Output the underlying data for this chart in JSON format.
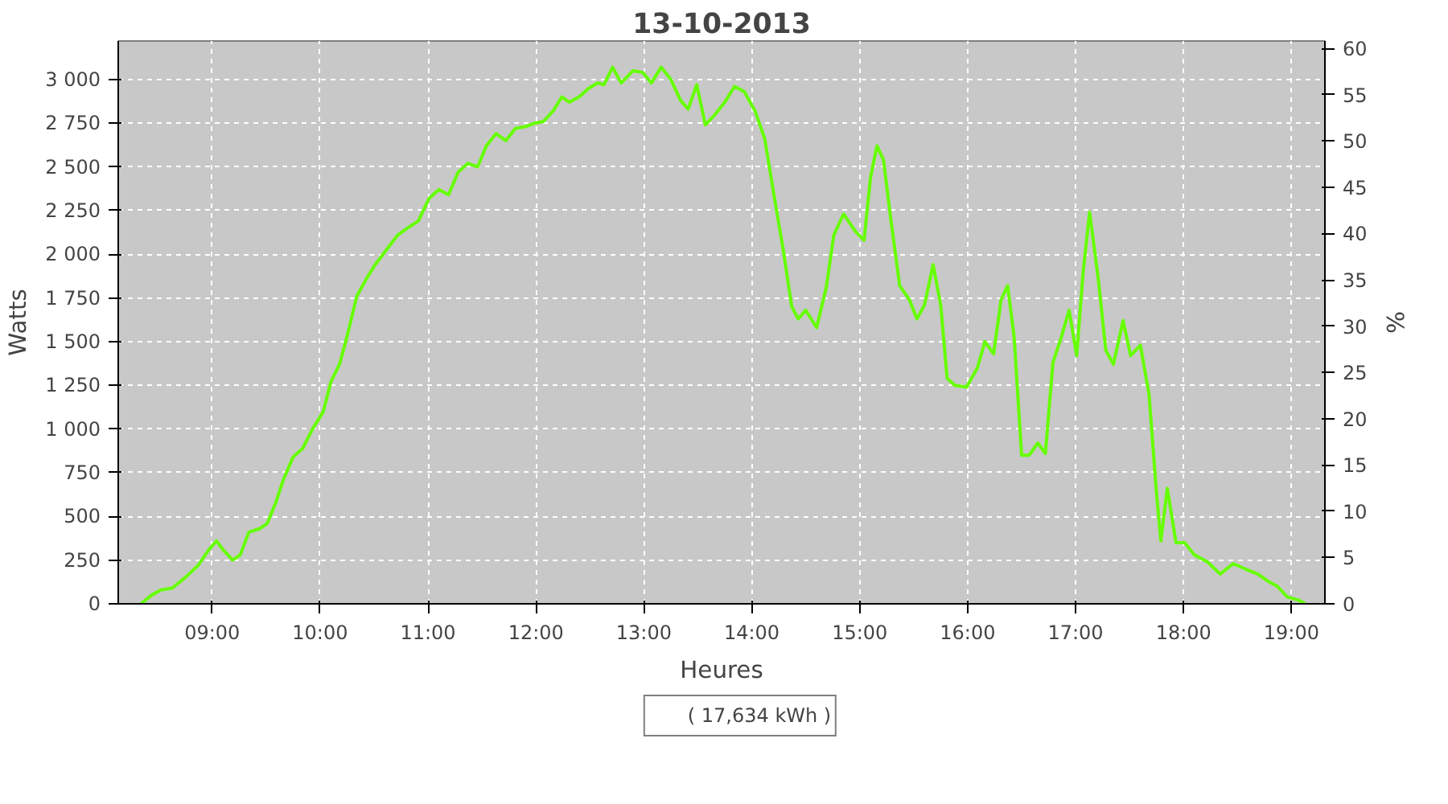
{
  "chart_data": {
    "type": "line",
    "title": "13-10-2013",
    "xlabel": "Heures",
    "ylabel": "Watts",
    "y2label": "%",
    "xlim": [
      8.13,
      19.31
    ],
    "xticks": [
      {
        "value": 9,
        "label": "09:00"
      },
      {
        "value": 10,
        "label": "10:00"
      },
      {
        "value": 11,
        "label": "11:00"
      },
      {
        "value": 12,
        "label": "12:00"
      },
      {
        "value": 13,
        "label": "13:00"
      },
      {
        "value": 14,
        "label": "14:00"
      },
      {
        "value": 15,
        "label": "15:00"
      },
      {
        "value": 16,
        "label": "16:00"
      },
      {
        "value": 17,
        "label": "17:00"
      },
      {
        "value": 18,
        "label": "18:00"
      },
      {
        "value": 19,
        "label": "19:00"
      }
    ],
    "ylim": [
      0,
      3220
    ],
    "yticks": [
      0,
      250,
      500,
      750,
      {
        "value": 1000,
        "label": "1 000"
      },
      {
        "value": 1250,
        "label": "1 250"
      },
      {
        "value": 1500,
        "label": "1 500"
      },
      {
        "value": 1750,
        "label": "1 750"
      },
      {
        "value": 2000,
        "label": "2 000"
      },
      {
        "value": 2250,
        "label": "2 250"
      },
      {
        "value": 2500,
        "label": "2 500"
      },
      {
        "value": 2750,
        "label": "2 750"
      },
      {
        "value": 3000,
        "label": "3 000"
      }
    ],
    "y2lim": [
      0,
      60.8
    ],
    "y2ticks": [
      0,
      5,
      10,
      15,
      20,
      25,
      30,
      35,
      40,
      45,
      50,
      55,
      60
    ],
    "grid": true,
    "legend": "bottom",
    "marker": "none",
    "line_style": "solid",
    "series": [
      {
        "name": "( 17,634 kWh )",
        "color": "#66ff00",
        "x": [
          8.34,
          8.44,
          8.53,
          8.63,
          8.75,
          8.87,
          8.97,
          9.04,
          9.1,
          9.19,
          9.26,
          9.34,
          9.44,
          9.51,
          9.59,
          9.66,
          9.75,
          9.84,
          9.93,
          10.03,
          10.1,
          10.18,
          10.25,
          10.34,
          10.43,
          10.51,
          10.62,
          10.72,
          10.81,
          10.91,
          11.01,
          11.1,
          11.19,
          11.28,
          11.37,
          11.46,
          11.54,
          11.63,
          11.72,
          11.81,
          11.9,
          11.99,
          12.07,
          12.16,
          12.24,
          12.31,
          12.4,
          12.49,
          12.57,
          12.63,
          12.71,
          12.79,
          12.9,
          12.99,
          13.07,
          13.16,
          13.25,
          13.34,
          13.41,
          13.49,
          13.57,
          13.66,
          13.75,
          13.84,
          13.93,
          14.03,
          14.12,
          14.21,
          14.29,
          14.37,
          14.43,
          14.5,
          14.6,
          14.69,
          14.76,
          14.85,
          14.96,
          15.04,
          15.1,
          15.16,
          15.22,
          15.29,
          15.37,
          15.46,
          15.53,
          15.6,
          15.68,
          15.75,
          15.81,
          15.88,
          15.99,
          16.09,
          16.16,
          16.24,
          16.31,
          16.37,
          16.43,
          16.5,
          16.57,
          16.65,
          16.72,
          16.79,
          16.87,
          16.94,
          17.01,
          17.07,
          17.13,
          17.21,
          17.28,
          17.35,
          17.44,
          17.51,
          17.6,
          17.68,
          17.75,
          17.79,
          17.85,
          17.93,
          18.01,
          18.1,
          18.22,
          18.34,
          18.46,
          18.57,
          18.69,
          18.78,
          18.87,
          18.96,
          19.07,
          19.13
        ],
        "values": [
          0,
          50,
          80,
          90,
          150,
          220,
          310,
          360,
          310,
          250,
          280,
          410,
          430,
          460,
          580,
          710,
          840,
          890,
          1000,
          1100,
          1270,
          1370,
          1530,
          1760,
          1860,
          1940,
          2030,
          2110,
          2150,
          2190,
          2320,
          2370,
          2340,
          2470,
          2520,
          2500,
          2620,
          2690,
          2650,
          2720,
          2730,
          2750,
          2760,
          2820,
          2900,
          2870,
          2900,
          2950,
          2980,
          2970,
          3070,
          2980,
          3050,
          3040,
          2980,
          3070,
          3000,
          2880,
          2830,
          2970,
          2740,
          2800,
          2870,
          2960,
          2930,
          2820,
          2660,
          2320,
          2030,
          1700,
          1630,
          1680,
          1580,
          1810,
          2110,
          2230,
          2130,
          2080,
          2440,
          2620,
          2540,
          2190,
          1820,
          1740,
          1630,
          1710,
          1940,
          1710,
          1290,
          1250,
          1240,
          1350,
          1500,
          1430,
          1740,
          1820,
          1530,
          850,
          850,
          920,
          860,
          1380,
          1530,
          1680,
          1420,
          1900,
          2240,
          1860,
          1450,
          1370,
          1620,
          1420,
          1480,
          1200,
          630,
          360,
          660,
          350,
          350,
          280,
          240,
          170,
          230,
          200,
          170,
          130,
          100,
          40,
          20,
          0
        ]
      }
    ]
  }
}
